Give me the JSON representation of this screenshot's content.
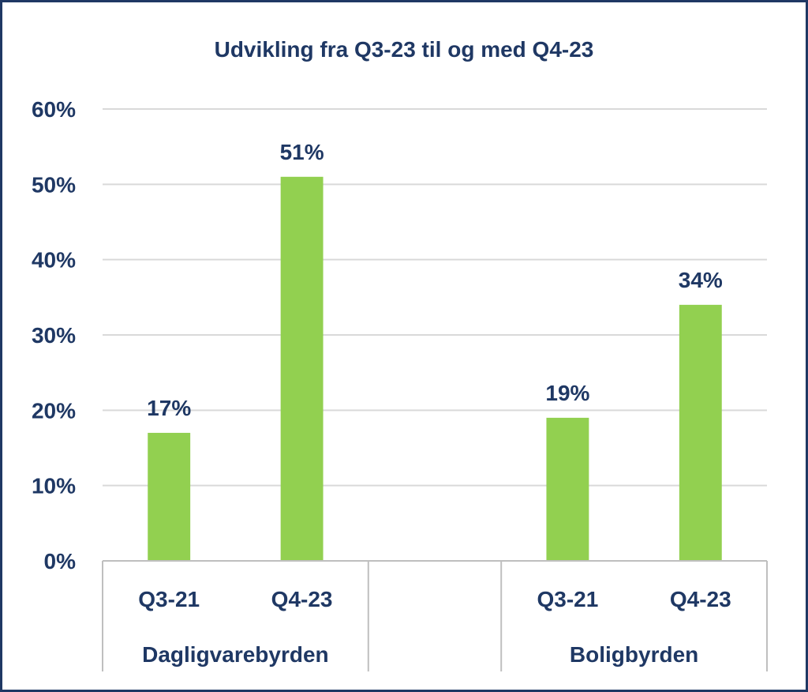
{
  "chart_data": {
    "type": "bar",
    "title": "Udvikling fra Q3-23 til og med Q4-23",
    "ylim": [
      0,
      60
    ],
    "ytick_step": 10,
    "ytick_suffix": "%",
    "value_suffix": "%",
    "grid": true,
    "legend": "none",
    "bar_color": "#92d050",
    "text_color": "#1f3864",
    "groups": [
      {
        "label": "Dagligvarebyrden",
        "categories": [
          "Q3-21",
          "Q4-23"
        ],
        "values": [
          17,
          51
        ]
      },
      {
        "label": "",
        "categories": [],
        "values": []
      },
      {
        "label": "Boligbyrden",
        "categories": [
          "Q3-21",
          "Q4-23"
        ],
        "values": [
          19,
          34
        ]
      }
    ]
  }
}
